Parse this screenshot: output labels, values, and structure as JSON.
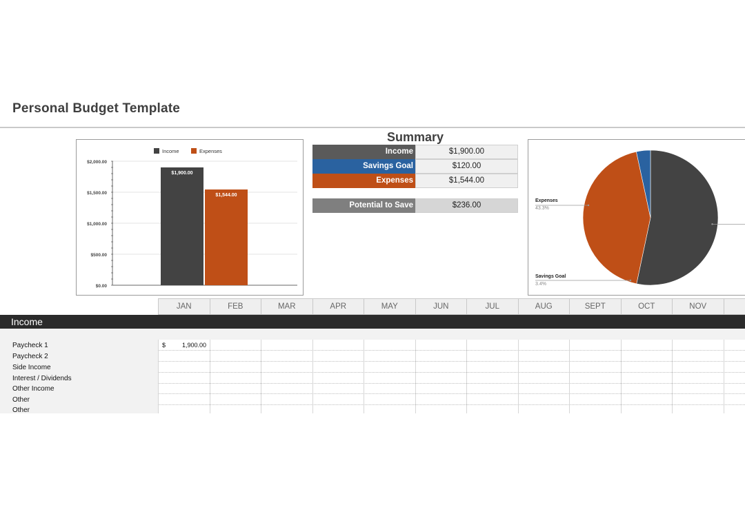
{
  "page": {
    "title": "Personal Budget Template"
  },
  "bar_chart": {
    "legend": [
      {
        "name": "Income",
        "color": "#434343"
      },
      {
        "name": "Expenses",
        "color": "#bf4f17"
      }
    ],
    "y_ticks": [
      "$2,000.00",
      "$1,500.00",
      "$1,000.00",
      "$500.00",
      "$0.00"
    ],
    "bar_labels": [
      "$1,900.00",
      "$1,544.00"
    ]
  },
  "chart_data": [
    {
      "type": "bar",
      "categories": [
        "Income",
        "Expenses"
      ],
      "values": [
        1900,
        1544
      ],
      "ylim": [
        0,
        2000
      ],
      "grid": true,
      "legend_position": "top"
    },
    {
      "type": "pie",
      "categories": [
        "Income",
        "Expenses",
        "Savings Goal"
      ],
      "values": [
        1900,
        1544,
        120
      ],
      "colors": [
        "#434343",
        "#bf4f17",
        "#2a62a0"
      ],
      "labels": [
        {
          "name": "Expenses",
          "pct": "43.3%"
        },
        {
          "name": "Savings Goal",
          "pct": "3.4%"
        }
      ]
    }
  ],
  "summary": {
    "title": "Summary",
    "rows": [
      {
        "label": "Income",
        "value": "$1,900.00",
        "color": "#5a5a5a"
      },
      {
        "label": "Savings Goal",
        "value": "$120.00",
        "color": "#2a62a0"
      },
      {
        "label": "Expenses",
        "value": "$1,544.00",
        "color": "#bf4f17"
      }
    ],
    "potential": {
      "label": "Potential to Save",
      "value": "$236.00",
      "color": "#7f7f7f"
    }
  },
  "months": [
    "JAN",
    "FEB",
    "MAR",
    "APR",
    "MAY",
    "JUN",
    "JUL",
    "AUG",
    "SEPT",
    "OCT",
    "NOV",
    "D"
  ],
  "income": {
    "section_label": "Income",
    "rows": [
      "Paycheck 1",
      "Paycheck 2",
      "Side Income",
      "Interest / Dividends",
      "Other Income",
      "Other",
      "Other"
    ],
    "jan_paycheck1": {
      "currency": "$",
      "value": "1,900.00"
    }
  }
}
